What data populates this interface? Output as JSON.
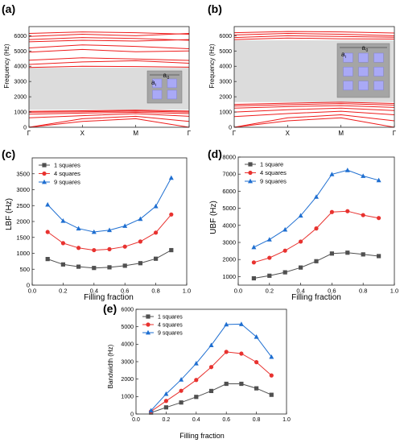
{
  "colors": {
    "series": [
      "#505050",
      "#e8322f",
      "#1f6fd1"
    ],
    "band_line": "#ee1c1c",
    "gap_fill": "#dcdcdc",
    "inset_bg": "#a5a5a5",
    "inset_square": "#a9a9f6"
  },
  "chart_data": [
    {
      "panel": "(a)",
      "type": "line",
      "ylabel": "Frequency (Hz)",
      "x_ticks": [
        "Γ",
        "X",
        "M",
        "Γ"
      ],
      "y_ticks": [
        "0",
        "1000",
        "2000",
        "3000",
        "4000",
        "5000",
        "6000"
      ],
      "ylim": [
        0,
        6600
      ],
      "band_gap": [
        1150,
        3900
      ],
      "inset_labels": [
        "a",
        "0",
        "a",
        "i"
      ],
      "bands": [
        [
          0,
          380,
          560,
          0
        ],
        [
          0,
          560,
          720,
          380
        ],
        [
          620,
          760,
          890,
          720
        ],
        [
          860,
          930,
          980,
          900
        ],
        [
          980,
          1020,
          1060,
          1000
        ],
        [
          1040,
          1080,
          1120,
          1060
        ],
        [
          3920,
          4000,
          3980,
          3940
        ],
        [
          4120,
          4280,
          4360,
          4200
        ],
        [
          4400,
          4550,
          4480,
          4380
        ],
        [
          4920,
          5100,
          4950,
          5000
        ],
        [
          5200,
          5400,
          5300,
          5150
        ],
        [
          5600,
          5700,
          5650,
          5750
        ],
        [
          5750,
          5880,
          5820,
          5700
        ],
        [
          5950,
          6100,
          6000,
          6150
        ],
        [
          6150,
          6250,
          6200,
          6100
        ]
      ]
    },
    {
      "panel": "(b)",
      "type": "line",
      "ylabel": "Frequency (Hz)",
      "x_ticks": [
        "Γ",
        "X",
        "M",
        "Γ"
      ],
      "y_ticks": [
        "0",
        "1000",
        "2000",
        "3000",
        "4000",
        "5000",
        "6000"
      ],
      "ylim": [
        0,
        6600
      ],
      "band_gap": [
        1650,
        5700
      ],
      "inset_labels": [
        "a",
        "0",
        "a",
        "i"
      ],
      "bands": [
        [
          0,
          420,
          620,
          0
        ],
        [
          0,
          620,
          820,
          420
        ],
        [
          700,
          900,
          1050,
          820
        ],
        [
          1000,
          1150,
          1250,
          1100
        ],
        [
          1250,
          1350,
          1420,
          1300
        ],
        [
          1400,
          1480,
          1550,
          1450
        ],
        [
          1500,
          1580,
          1640,
          1560
        ],
        [
          5750,
          5850,
          5800,
          5780
        ],
        [
          5880,
          6000,
          5950,
          5900
        ],
        [
          6050,
          6150,
          6100,
          6000
        ],
        [
          6200,
          6280,
          6250,
          6180
        ]
      ]
    },
    {
      "panel": "(c)",
      "type": "line",
      "xlabel": "Filling fraction",
      "ylabel": "LBF (Hz)",
      "xlim": [
        0.0,
        1.0
      ],
      "ylim": [
        0,
        4000
      ],
      "x_ticks": [
        "0.0",
        "0.2",
        "0.4",
        "0.6",
        "0.8",
        "1.0"
      ],
      "y_ticks": [
        "0",
        "500",
        "1000",
        "1500",
        "2000",
        "2500",
        "3000",
        "3500"
      ],
      "legend": "top-left",
      "x": [
        0.1,
        0.2,
        0.3,
        0.4,
        0.5,
        0.6,
        0.7,
        0.8,
        0.9
      ],
      "series": [
        {
          "name": "1 squares",
          "values": [
            820,
            650,
            580,
            540,
            560,
            610,
            690,
            830,
            1100
          ]
        },
        {
          "name": "4 squares",
          "values": [
            1670,
            1320,
            1170,
            1100,
            1130,
            1210,
            1370,
            1650,
            2220
          ]
        },
        {
          "name": "9 squares",
          "values": [
            2530,
            2020,
            1780,
            1670,
            1730,
            1860,
            2080,
            2480,
            3370
          ]
        }
      ]
    },
    {
      "panel": "(d)",
      "type": "line",
      "xlabel": "Filling fraction",
      "ylabel": "UBF (Hz)",
      "xlim": [
        0.0,
        1.0
      ],
      "ylim": [
        500,
        8000
      ],
      "x_ticks": [
        "0.0",
        "0.2",
        "0.4",
        "0.6",
        "0.8",
        "1.0"
      ],
      "y_ticks": [
        "1000",
        "2000",
        "3000",
        "4000",
        "5000",
        "6000",
        "7000",
        "8000"
      ],
      "legend": "top-left",
      "x": [
        0.1,
        0.2,
        0.3,
        0.4,
        0.5,
        0.6,
        0.7,
        0.8,
        0.9
      ],
      "series": [
        {
          "name": "1 square",
          "values": [
            900,
            1050,
            1250,
            1530,
            1900,
            2350,
            2400,
            2300,
            2200
          ]
        },
        {
          "name": "4 squares",
          "values": [
            1830,
            2100,
            2520,
            3050,
            3820,
            4780,
            4830,
            4600,
            4430
          ]
        },
        {
          "name": "9 squares",
          "values": [
            2720,
            3170,
            3750,
            4570,
            5670,
            6990,
            7230,
            6890,
            6640
          ]
        }
      ]
    },
    {
      "panel": "(e)",
      "type": "line",
      "xlabel": "Filling fraction",
      "ylabel": "Bandwidth (Hz)",
      "xlim": [
        0.0,
        1.0
      ],
      "ylim": [
        0,
        6000
      ],
      "x_ticks": [
        "0.0",
        "0.2",
        "0.4",
        "0.6",
        "0.8",
        "1.0"
      ],
      "y_ticks": [
        "0",
        "1000",
        "2000",
        "3000",
        "4000",
        "5000",
        "6000"
      ],
      "legend": "top-left",
      "x": [
        0.1,
        0.2,
        0.3,
        0.4,
        0.5,
        0.6,
        0.7,
        0.8,
        0.9
      ],
      "series": [
        {
          "name": "1 squares",
          "values": [
            80,
            380,
            660,
            980,
            1320,
            1730,
            1730,
            1470,
            1100
          ]
        },
        {
          "name": "4 squares",
          "values": [
            150,
            750,
            1330,
            1950,
            2690,
            3560,
            3460,
            2970,
            2210
          ]
        },
        {
          "name": "9 squares",
          "values": [
            200,
            1150,
            1970,
            2900,
            3940,
            5130,
            5150,
            4420,
            3270
          ]
        }
      ]
    }
  ]
}
